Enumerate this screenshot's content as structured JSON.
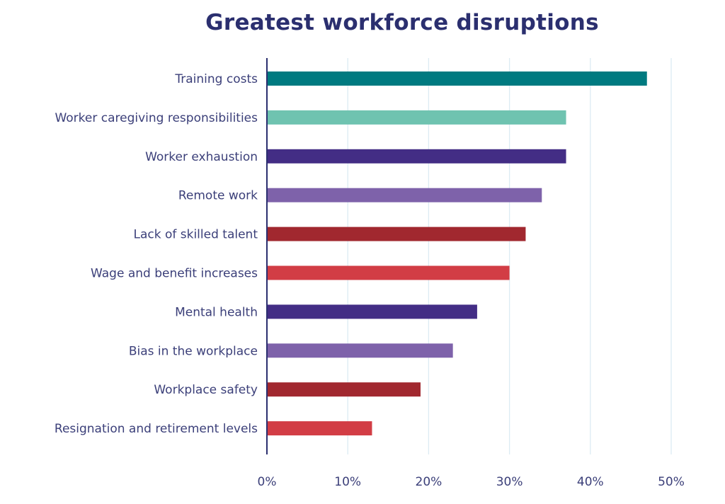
{
  "chart_data": {
    "type": "bar",
    "orientation": "horizontal",
    "title": "Greatest workforce disruptions",
    "xlabel": "",
    "ylabel": "",
    "categories": [
      "Training costs",
      "Worker caregiving responsibilities",
      "Worker exhaustion",
      "Remote work",
      "Lack of skilled talent",
      "Wage and benefit increases",
      "Mental health",
      "Bias in the workplace",
      "Workplace safety",
      "Resignation and retirement levels"
    ],
    "values": [
      47,
      37,
      37,
      34,
      32,
      30,
      26,
      23,
      19,
      13
    ],
    "colors": [
      "#007a80",
      "#6fc3b0",
      "#432d85",
      "#7e62aa",
      "#a1282f",
      "#d23d45",
      "#432d85",
      "#7e62aa",
      "#a1282f",
      "#d23d45"
    ],
    "xlim": [
      0,
      50
    ],
    "xticks": [
      0,
      10,
      20,
      30,
      40,
      50
    ],
    "xtick_labels": [
      "0%",
      "10%",
      "20%",
      "30%",
      "40%",
      "50%"
    ],
    "grid": "vertical",
    "legend": "none"
  },
  "colors": {
    "text": "#3b3f79",
    "title": "#2b2f6f",
    "axis": "#2b2f6f",
    "grid": "#dcebf3"
  }
}
